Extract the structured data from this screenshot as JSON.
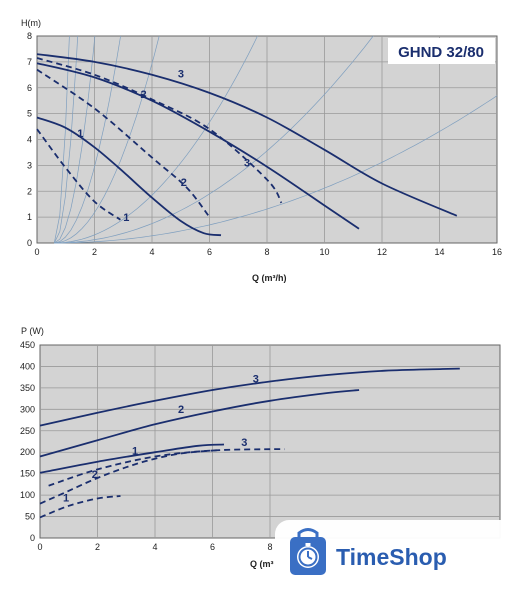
{
  "colors": {
    "curve": "#1a2e6e",
    "system_curve": "#7f9fbf",
    "plot_bg": "#d3d3d3",
    "grid": "#9a9a9a",
    "watermark_text": "#2a5db0"
  },
  "watermark": {
    "text": "TimeShop",
    "icon": "stopwatch-shopping-bag-logo-icon"
  },
  "chart_data": [
    {
      "type": "line",
      "title": "GHND 32/80",
      "xlabel": "Q (m³/h)",
      "ylabel": "H(m)",
      "xlim": [
        0,
        16
      ],
      "ylim": [
        0,
        8
      ],
      "xticks": [
        "0",
        "2",
        "4",
        "6",
        "8",
        "10",
        "12",
        "14",
        "16"
      ],
      "yticks": [
        "0",
        "1",
        "2",
        "3",
        "4",
        "5",
        "6",
        "7",
        "8"
      ],
      "grid": true,
      "series": [
        {
          "name": "3",
          "style": "solid",
          "points": [
            [
              0,
              7.3
            ],
            [
              2,
              7.0
            ],
            [
              4,
              6.5
            ],
            [
              6,
              5.8
            ],
            [
              8,
              4.85
            ],
            [
              10,
              3.6
            ],
            [
              12,
              2.3
            ],
            [
              14.6,
              1.05
            ]
          ],
          "label_at": [
            4.9,
            6.4
          ]
        },
        {
          "name": "2",
          "style": "solid",
          "points": [
            [
              0,
              6.95
            ],
            [
              2,
              6.4
            ],
            [
              4,
              5.5
            ],
            [
              6,
              4.3
            ],
            [
              8,
              2.95
            ],
            [
              10,
              1.45
            ],
            [
              11.2,
              0.55
            ]
          ],
          "label_at": [
            3.6,
            5.6
          ]
        },
        {
          "name": "1",
          "style": "solid",
          "points": [
            [
              0,
              4.85
            ],
            [
              1,
              4.45
            ],
            [
              2,
              3.7
            ],
            [
              3,
              2.75
            ],
            [
              4,
              1.75
            ],
            [
              5,
              0.85
            ],
            [
              5.8,
              0.38
            ],
            [
              6.4,
              0.3
            ]
          ],
          "label_at": [
            1.4,
            4.1
          ]
        },
        {
          "name": "3",
          "style": "dashed",
          "points": [
            [
              0,
              7.15
            ],
            [
              2,
              6.5
            ],
            [
              4,
              5.55
            ],
            [
              6,
              4.4
            ],
            [
              8,
              2.45
            ],
            [
              8.5,
              1.55
            ]
          ],
          "label_at": [
            7.2,
            2.95
          ]
        },
        {
          "name": "2",
          "style": "dashed",
          "points": [
            [
              0,
              6.7
            ],
            [
              2,
              5.2
            ],
            [
              4,
              3.3
            ],
            [
              5.2,
              2.15
            ],
            [
              6,
              1.0
            ]
          ],
          "label_at": [
            5.0,
            2.2
          ]
        },
        {
          "name": "1",
          "style": "dashed",
          "points": [
            [
              0,
              4.4
            ],
            [
              1,
              2.9
            ],
            [
              2,
              1.6
            ],
            [
              2.9,
              0.9
            ]
          ],
          "label_at": [
            3.0,
            0.85
          ]
        }
      ],
      "system_curves": [
        {
          "k": 29
        },
        {
          "k": 12
        },
        {
          "k": 4
        },
        {
          "k": 1.5
        },
        {
          "k": 0.6
        },
        {
          "k": 0.16
        },
        {
          "k": 0.065
        },
        {
          "k": 0.024
        }
      ]
    },
    {
      "type": "line",
      "title": "",
      "xlabel": "Q (m³",
      "ylabel": "P (W)",
      "xlim": [
        0,
        16
      ],
      "ylim": [
        0,
        450
      ],
      "xticks": [
        "0",
        "2",
        "4",
        "6",
        "8"
      ],
      "yticks": [
        "0",
        "50",
        "100",
        "150",
        "200",
        "250",
        "300",
        "350",
        "400",
        "450"
      ],
      "grid": true,
      "series": [
        {
          "name": "3",
          "style": "solid",
          "points": [
            [
              0,
              262
            ],
            [
              2,
              292
            ],
            [
              4,
              320
            ],
            [
              6,
              345
            ],
            [
              8,
              365
            ],
            [
              10,
              380
            ],
            [
              12,
              390
            ],
            [
              14,
              394
            ],
            [
              14.6,
              395
            ]
          ],
          "label_at": [
            7.4,
            362
          ]
        },
        {
          "name": "2",
          "style": "solid",
          "points": [
            [
              0,
              190
            ],
            [
              2,
              228
            ],
            [
              4,
              265
            ],
            [
              6,
              295
            ],
            [
              8,
              320
            ],
            [
              10,
              338
            ],
            [
              11.1,
              345
            ]
          ],
          "label_at": [
            4.8,
            292
          ]
        },
        {
          "name": "1",
          "style": "solid",
          "points": [
            [
              0,
              152
            ],
            [
              2,
              178
            ],
            [
              4,
              200
            ],
            [
              5.5,
              215
            ],
            [
              6.4,
              218
            ]
          ],
          "label_at": [
            3.2,
            195
          ]
        },
        {
          "name": "3",
          "style": "dashed",
          "points": [
            [
              0.3,
              122
            ],
            [
              2,
              160
            ],
            [
              4,
              190
            ],
            [
              6,
              204
            ],
            [
              8,
              207
            ],
            [
              8.5,
              207
            ]
          ],
          "label_at": [
            7.0,
            215
          ]
        },
        {
          "name": "2",
          "style": "dashed",
          "points": [
            [
              0,
              80
            ],
            [
              1,
              110
            ],
            [
              2,
              140
            ],
            [
              3,
              165
            ],
            [
              4,
              185
            ],
            [
              5,
              198
            ],
            [
              6.2,
              205
            ]
          ],
          "label_at": [
            1.8,
            140
          ]
        },
        {
          "name": "1",
          "style": "dashed",
          "points": [
            [
              0,
              48
            ],
            [
              1,
              75
            ],
            [
              2,
              92
            ],
            [
              2.8,
              98
            ]
          ],
          "label_at": [
            0.8,
            85
          ]
        }
      ]
    }
  ]
}
